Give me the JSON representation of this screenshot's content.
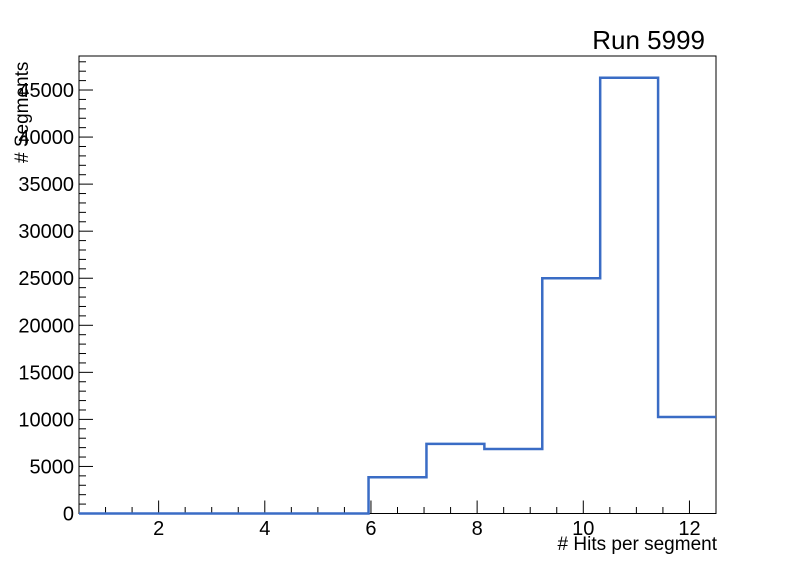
{
  "window": {
    "title": "Run 5999"
  },
  "colors": {
    "hist_line": "#3a6cc5",
    "axis": "#000000",
    "background": "#ffffff",
    "text": "#000000"
  },
  "chart_data": {
    "type": "bar",
    "subtype": "step-histogram-outline",
    "title": "Run 5999",
    "xlabel": "# Hits per segment",
    "ylabel": "# Segments",
    "xlim": [
      0.5,
      12.5
    ],
    "ylim": [
      0,
      48615
    ],
    "grid": false,
    "legend": null,
    "bin_edges": [
      0.5,
      1.5909,
      2.6818,
      3.7727,
      4.8636,
      5.9545,
      7.0455,
      8.1364,
      9.2273,
      10.3182,
      11.4091,
      12.5
    ],
    "counts": [
      0,
      0,
      0,
      0,
      0,
      3850,
      7400,
      6850,
      25000,
      46300,
      10250
    ],
    "x_major_ticks": [
      2,
      4,
      6,
      8,
      10,
      12
    ],
    "x_major_tick_labels": [
      "2",
      "4",
      "6",
      "8",
      "10",
      "12"
    ],
    "x_minor_step": 0.5,
    "y_major_ticks": [
      0,
      5000,
      10000,
      15000,
      20000,
      25000,
      30000,
      35000,
      40000,
      45000
    ],
    "y_major_tick_labels": [
      "0",
      "5000",
      "10000",
      "15000",
      "20000",
      "25000",
      "30000",
      "35000",
      "40000",
      "45000"
    ],
    "y_minor_step": 1000
  }
}
